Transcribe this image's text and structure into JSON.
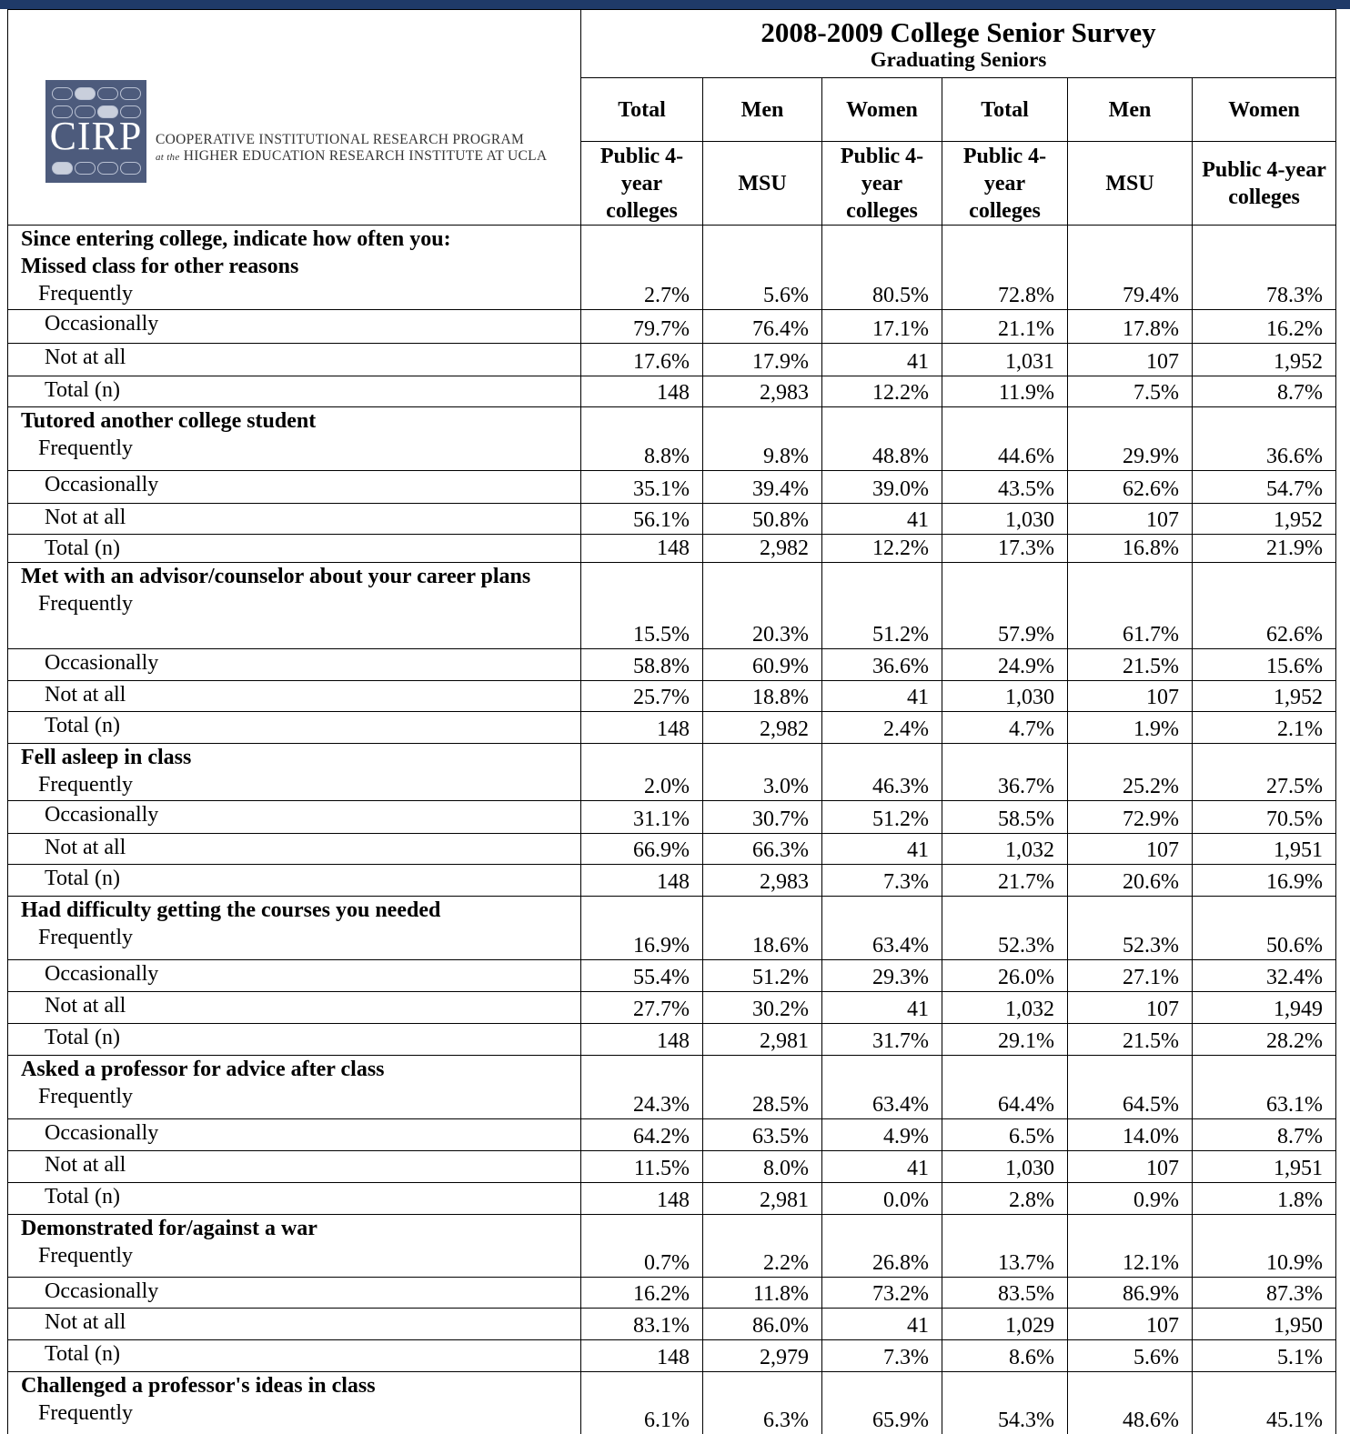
{
  "logo": {
    "mark": "CIRP",
    "line1": "COOPERATIVE INSTITUTIONAL RESEARCH PROGRAM",
    "line2_prefix": "at the",
    "line2": "HIGHER EDUCATION RESEARCH INSTITUTE AT UCLA"
  },
  "header": {
    "title": "2008-2009 College Senior Survey",
    "subtitle": "Graduating Seniors",
    "groups": [
      "Total",
      "Men",
      "Women",
      "Total",
      "Men",
      "Women"
    ],
    "comparisons": [
      "Public 4-year colleges",
      "MSU",
      "Public 4-year colleges",
      "Public 4- year colleges",
      "MSU",
      "Public 4-year colleges"
    ]
  },
  "table": {
    "intro": "Since entering college, indicate how often you:",
    "sections": [
      {
        "title": "Missed class for other reasons",
        "rows": [
          {
            "label": "Frequently",
            "values": [
              "2.7%",
              "5.6%",
              "80.5%",
              "72.8%",
              "79.4%",
              "78.3%"
            ]
          },
          {
            "label": "Occasionally",
            "values": [
              "79.7%",
              "76.4%",
              "17.1%",
              "21.1%",
              "17.8%",
              "16.2%"
            ]
          },
          {
            "label": "Not at all",
            "values": [
              "17.6%",
              "17.9%",
              "41",
              "1,031",
              "107",
              "1,952"
            ]
          },
          {
            "label": "Total (n)",
            "values": [
              "148",
              "2,983",
              "12.2%",
              "11.9%",
              "7.5%",
              "8.7%"
            ]
          }
        ]
      },
      {
        "title": "Tutored another college student",
        "rows": [
          {
            "label": "Frequently",
            "values": [
              "8.8%",
              "9.8%",
              "48.8%",
              "44.6%",
              "29.9%",
              "36.6%"
            ]
          },
          {
            "label": "Occasionally",
            "values": [
              "35.1%",
              "39.4%",
              "39.0%",
              "43.5%",
              "62.6%",
              "54.7%"
            ]
          },
          {
            "label": "Not at all",
            "values": [
              "56.1%",
              "50.8%",
              "41",
              "1,030",
              "107",
              "1,952"
            ]
          },
          {
            "label": "Total (n)",
            "values": [
              "148",
              "2,982",
              "12.2%",
              "17.3%",
              "16.8%",
              "21.9%"
            ]
          }
        ]
      },
      {
        "title": "Met with an advisor/counselor about your career plans",
        "rows": [
          {
            "label": "Frequently",
            "values": [
              "15.5%",
              "20.3%",
              "51.2%",
              "57.9%",
              "61.7%",
              "62.6%"
            ]
          },
          {
            "label": "Occasionally",
            "values": [
              "58.8%",
              "60.9%",
              "36.6%",
              "24.9%",
              "21.5%",
              "15.6%"
            ]
          },
          {
            "label": "Not at all",
            "values": [
              "25.7%",
              "18.8%",
              "41",
              "1,030",
              "107",
              "1,952"
            ]
          },
          {
            "label": "Total (n)",
            "values": [
              "148",
              "2,982",
              "2.4%",
              "4.7%",
              "1.9%",
              "2.1%"
            ]
          }
        ]
      },
      {
        "title": "Fell asleep in class",
        "rows": [
          {
            "label": "Frequently",
            "values": [
              "2.0%",
              "3.0%",
              "46.3%",
              "36.7%",
              "25.2%",
              "27.5%"
            ]
          },
          {
            "label": "Occasionally",
            "values": [
              "31.1%",
              "30.7%",
              "51.2%",
              "58.5%",
              "72.9%",
              "70.5%"
            ]
          },
          {
            "label": "Not at all",
            "values": [
              "66.9%",
              "66.3%",
              "41",
              "1,032",
              "107",
              "1,951"
            ]
          },
          {
            "label": "Total (n)",
            "values": [
              "148",
              "2,983",
              "7.3%",
              "21.7%",
              "20.6%",
              "16.9%"
            ]
          }
        ]
      },
      {
        "title": "Had difficulty getting the courses you needed",
        "rows": [
          {
            "label": "Frequently",
            "values": [
              "16.9%",
              "18.6%",
              "63.4%",
              "52.3%",
              "52.3%",
              "50.6%"
            ]
          },
          {
            "label": "Occasionally",
            "values": [
              "55.4%",
              "51.2%",
              "29.3%",
              "26.0%",
              "27.1%",
              "32.4%"
            ]
          },
          {
            "label": "Not at all",
            "values": [
              "27.7%",
              "30.2%",
              "41",
              "1,032",
              "107",
              "1,949"
            ]
          },
          {
            "label": "Total (n)",
            "values": [
              "148",
              "2,981",
              "31.7%",
              "29.1%",
              "21.5%",
              "28.2%"
            ]
          }
        ]
      },
      {
        "title": "Asked a professor for advice after class",
        "rows": [
          {
            "label": "Frequently",
            "values": [
              "24.3%",
              "28.5%",
              "63.4%",
              "64.4%",
              "64.5%",
              "63.1%"
            ]
          },
          {
            "label": "Occasionally",
            "values": [
              "64.2%",
              "63.5%",
              "4.9%",
              "6.5%",
              "14.0%",
              "8.7%"
            ]
          },
          {
            "label": "Not at all",
            "values": [
              "11.5%",
              "8.0%",
              "41",
              "1,030",
              "107",
              "1,951"
            ]
          },
          {
            "label": "Total (n)",
            "values": [
              "148",
              "2,981",
              "0.0%",
              "2.8%",
              "0.9%",
              "1.8%"
            ]
          }
        ]
      },
      {
        "title": "Demonstrated for/against a war",
        "rows": [
          {
            "label": "Frequently",
            "values": [
              "0.7%",
              "2.2%",
              "26.8%",
              "13.7%",
              "12.1%",
              "10.9%"
            ]
          },
          {
            "label": "Occasionally",
            "values": [
              "16.2%",
              "11.8%",
              "73.2%",
              "83.5%",
              "86.9%",
              "87.3%"
            ]
          },
          {
            "label": "Not at all",
            "values": [
              "83.1%",
              "86.0%",
              "41",
              "1,029",
              "107",
              "1,950"
            ]
          },
          {
            "label": "Total (n)",
            "values": [
              "148",
              "2,979",
              "7.3%",
              "8.6%",
              "5.6%",
              "5.1%"
            ]
          }
        ]
      },
      {
        "title": "Challenged a professor's ideas in class",
        "rows": [
          {
            "label": "Frequently",
            "values": [
              "6.1%",
              "6.3%",
              "65.9%",
              "54.3%",
              "48.6%",
              "45.1%"
            ]
          }
        ]
      }
    ]
  }
}
